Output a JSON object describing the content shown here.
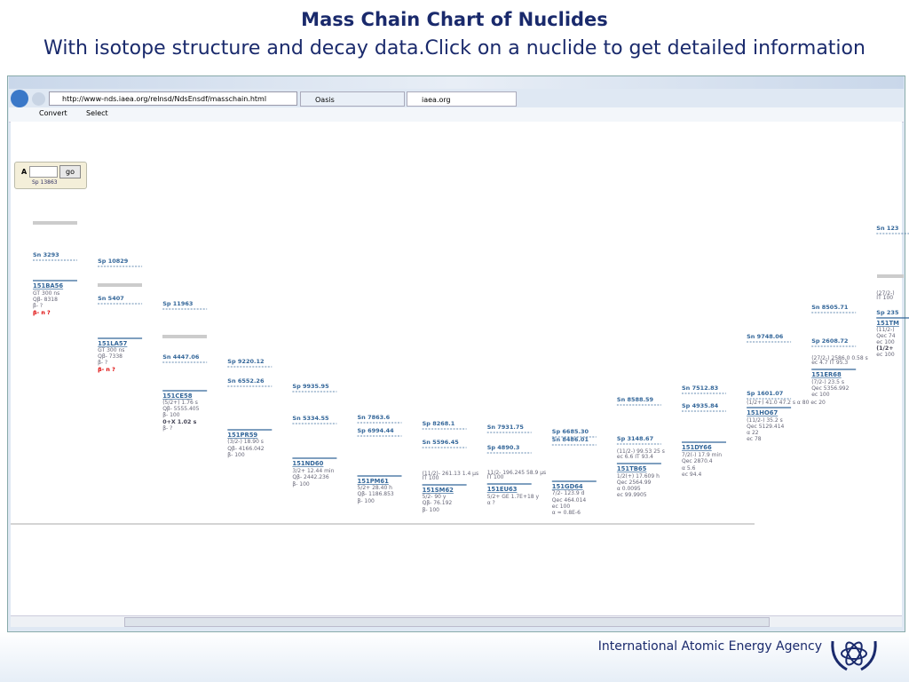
{
  "header": {
    "title": "Mass Chain Chart of Nuclides",
    "subtitle": "With isotope structure and decay data.Click on a nuclide to get detailed information"
  },
  "browser": {
    "url": "http://www-nds.iaea.org/relnsd/NdsEnsdf/masschain.html",
    "tabs": [
      "Oasis",
      "iaea.org"
    ],
    "toolbar": [
      "Convert",
      "Select"
    ]
  },
  "search": {
    "label": "A",
    "button": "go",
    "hint": "Sp 13863"
  },
  "columns": [
    [
      "Sn 3293",
      "151BA56",
      "GT 300 ns",
      "Qβ- 8318",
      "β- ?",
      "β- n ?"
    ],
    [
      "Sp 10829",
      "Sn 5407",
      "151LA57",
      "GT 300 ns",
      "Qβ- 7338",
      "β- ?",
      "β- n ?"
    ],
    [
      "Sp 11963",
      "Sn 4447.06",
      "151CE58",
      "(5/2+) 1.76 s",
      "Qβ- 5555.405",
      "β- 100",
      "0+X 1.02 s",
      "β- ?"
    ],
    [
      "Sp 9220.12",
      "Sn 6552.26",
      "151PR59",
      "(3/2-) 18.90 s",
      "Qβ- 4166.042",
      "β- 100"
    ],
    [
      "Sp 9935.95",
      "Sn 5334.55",
      "151ND60",
      "3/2+ 12.44 min",
      "Qβ- 2442.236",
      "β- 100"
    ],
    [
      "Sn 7863.6",
      "Sp 6994.44",
      "151PM61",
      "5/2+ 28.40 h",
      "Qβ- 1186.853",
      "β- 100"
    ],
    [
      "Sp 8268.1",
      "Sn 5596.45",
      "(11/2)- 261.13 1.4 μs",
      "IT 100",
      "151SM62",
      "5/2- 90 y",
      "Qβ- 76.192",
      "β- 100"
    ],
    [
      "Sn 7931.75",
      "Sp 4890.3",
      "11/2- 196.245 58.9 μs",
      "IT 100",
      "151EU63",
      "5/2+ GE 1.7E+18 y",
      "α ?"
    ],
    [
      "Sp 6685.30",
      "Sn 8486.01",
      "151GD64",
      "7/2- 123.9 d",
      "Qec 464.014",
      "ec 100",
      "α ≈ 0.8E-6"
    ],
    [
      "Sn 8588.59",
      "Sp 3148.67",
      "(11/2-) 99.53 25 s",
      "ec 6.6  IT 93.4",
      "151TB65",
      "1/2(+) 17.609 h",
      "Qec 2564.99",
      "α 0.0095",
      "ec 99.9905"
    ],
    [
      "Sn 7512.83",
      "Sp 4935.84",
      "151DY66",
      "7/2(-) 17.9 min",
      "Qec 2870.4",
      "α 5.6",
      "ec 94.4"
    ],
    [
      "Sn 9748.06",
      "Sp 1601.07",
      "(1/2+) 41.0 47.2 s α 80  ec 20",
      "151HO67",
      "(11/2-) 35.2 s",
      "Qec 5129.414",
      "α 22",
      "ec 78"
    ],
    [
      "Sn 8505.71",
      "Sp 2608.72",
      "(27/2-) 2586.0 0.58 s",
      "ec 4.7  IT 95.3",
      "151ER68",
      "(7/2-) 23.5 s",
      "Qec 5356.992",
      "ec 100"
    ],
    [
      "Sn 123",
      "(27/2-)",
      "IT 100",
      "Sp 235",
      "151TM",
      "(11/2-)",
      "Qec 74",
      "ec 100",
      "(1/2+",
      "ec 100"
    ]
  ],
  "footer": {
    "org": "International Atomic Energy Agency"
  }
}
